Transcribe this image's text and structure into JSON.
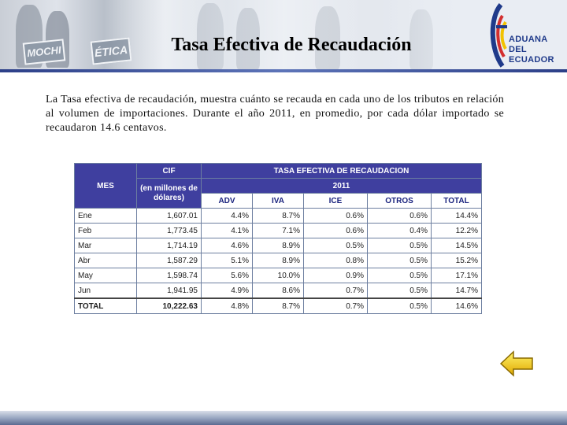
{
  "header": {
    "title": "Tasa Efectiva de Recaudación",
    "photo_signs": [
      "MOCHI",
      "ÉTICA"
    ]
  },
  "logo": {
    "lines": [
      "ADUANA",
      "DEL",
      "ECUADOR"
    ],
    "colors": {
      "blue": "#1f3a8a",
      "red": "#d32f2f",
      "yellow": "#f2c200"
    }
  },
  "paragraph": "La Tasa efectiva de recaudación, muestra cuánto se recauda en cada uno de los tributos en relación al volumen de importaciones. Durante el año 2011, en promedio, por cada dólar importado se recaudaron 14.6 centavos.",
  "table": {
    "header_mes": "MES",
    "header_cif": "CIF",
    "header_cif_sub": "(en millones de dólares)",
    "header_tasa": "TASA EFECTIVA DE RECAUDACION",
    "header_year": "2011",
    "columns": [
      "ADV",
      "IVA",
      "ICE",
      "OTROS",
      "TOTAL"
    ],
    "rows": [
      {
        "mes": "Ene",
        "cif": "1,607.01",
        "adv": "4.4%",
        "iva": "8.7%",
        "ice": "0.6%",
        "otros": "0.6%",
        "total": "14.4%"
      },
      {
        "mes": "Feb",
        "cif": "1,773.45",
        "adv": "4.1%",
        "iva": "7.1%",
        "ice": "0.6%",
        "otros": "0.4%",
        "total": "12.2%"
      },
      {
        "mes": "Mar",
        "cif": "1,714.19",
        "adv": "4.6%",
        "iva": "8.9%",
        "ice": "0.5%",
        "otros": "0.5%",
        "total": "14.5%"
      },
      {
        "mes": "Abr",
        "cif": "1,587.29",
        "adv": "5.1%",
        "iva": "8.9%",
        "ice": "0.8%",
        "otros": "0.5%",
        "total": "15.2%"
      },
      {
        "mes": "May",
        "cif": "1,598.74",
        "adv": "5.6%",
        "iva": "10.0%",
        "ice": "0.9%",
        "otros": "0.5%",
        "total": "17.1%"
      },
      {
        "mes": "Jun",
        "cif": "1,941.95",
        "adv": "4.9%",
        "iva": "8.6%",
        "ice": "0.7%",
        "otros": "0.5%",
        "total": "14.7%"
      }
    ],
    "total_row": {
      "mes": "TOTAL",
      "cif": "10,222.63",
      "adv": "4.8%",
      "iva": "8.7%",
      "ice": "0.7%",
      "otros": "0.5%",
      "total": "14.6%"
    },
    "colors": {
      "header_bg": "#3f3f9f",
      "header_text": "#ffffff",
      "subheader_text": "#1a237e"
    }
  },
  "navigation": {
    "back_icon": "left-arrow-icon",
    "arrow_color": "#f2c200"
  }
}
